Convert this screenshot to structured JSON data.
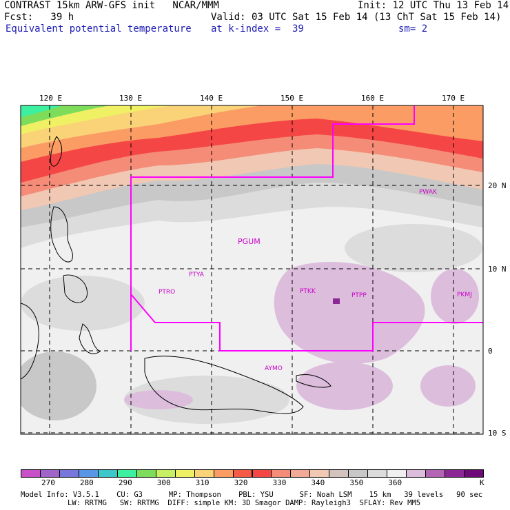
{
  "header": {
    "model_line": "CONTRAST 15km ARW-GFS init   NCAR/MMM",
    "init_line": "Init: 12 UTC Thu 13 Feb 14",
    "fcst_line": "Fcst:   39 h",
    "valid_line": "Valid: 03 UTC Sat 15 Feb 14 (13 ChT Sat 15 Feb 14)",
    "field_name": "Equivalent potential temperature",
    "level_line": "at k-index =  39",
    "smooth_line": "sm= 2"
  },
  "map": {
    "lon_labels": [
      "120 E",
      "130 E",
      "140 E",
      "150 E",
      "160 E",
      "170 E"
    ],
    "lat_labels": [
      "20 N",
      "10 N",
      "0",
      "10 S"
    ],
    "stations": [
      "PGUM",
      "PTYA",
      "PTRO",
      "PTKK",
      "PTPP",
      "PKMJ",
      "PWAK",
      "AYMO"
    ],
    "boundary_color": "#ff00ff",
    "grid_style": "dashed"
  },
  "colorbar": {
    "colors": [
      "#c850c8",
      "#a064c8",
      "#7878dc",
      "#5a96e6",
      "#3cc8c8",
      "#3cf0a0",
      "#7ddc5a",
      "#c8f064",
      "#f0f064",
      "#fad278",
      "#fa9c64",
      "#f55a46",
      "#f54646",
      "#f58c78",
      "#f0aa96",
      "#f0c8b4",
      "#d2c3be",
      "#c8c8c8",
      "#dcdcdc",
      "#f0f0f0",
      "#dcbedc",
      "#b464b4",
      "#8c2896",
      "#6e0a78"
    ],
    "labels": [
      "270",
      "280",
      "290",
      "300",
      "310",
      "320",
      "330",
      "340",
      "350",
      "360"
    ],
    "unit": "K"
  },
  "footer": {
    "line1": "Model Info: V3.5.1    CU: G3      MP: Thompson    PBL: YSU      SF: Noah LSM    15 km   39 levels   90 sec",
    "line2": "LW: RRTMG   SW: RRTMG  DIFF: simple KM: 3D Smagor DAMP: Rayleigh3  SFLAY: Rev MM5"
  }
}
